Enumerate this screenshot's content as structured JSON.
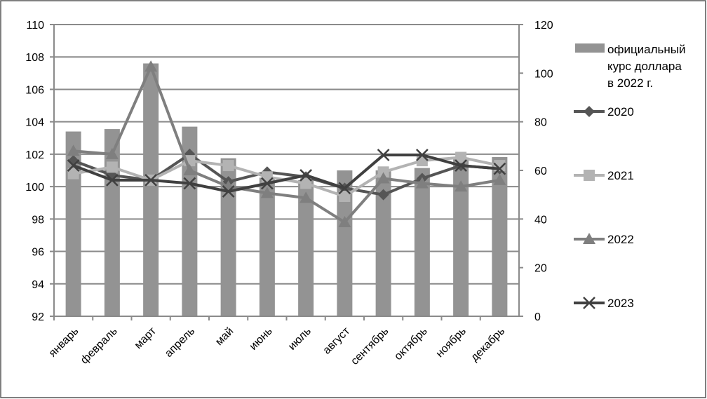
{
  "chart_data": {
    "type": "bar+line",
    "categories": [
      "январь",
      "февраль",
      "март",
      "апрель",
      "май",
      "июнь",
      "июль",
      "август",
      "сентябрь",
      "октябрь",
      "ноябрь",
      "декабрь"
    ],
    "left_axis": {
      "ylim": [
        92,
        110
      ],
      "ticks": [
        "92",
        "94",
        "96",
        "98",
        "100",
        "102",
        "104",
        "106",
        "108",
        "110"
      ]
    },
    "right_axis": {
      "ylim": [
        0,
        120
      ],
      "ticks": [
        "0",
        "20",
        "40",
        "60",
        "80",
        "100",
        "120"
      ]
    },
    "grid": true,
    "legend_position": "right",
    "bar_series": {
      "name_lines": [
        "официальный",
        "курс доллара",
        "в 2022 г."
      ],
      "axis": "right",
      "color": "#939393",
      "values": [
        76,
        77,
        104,
        78,
        65,
        57,
        56,
        60,
        60,
        61,
        65,
        65.5
      ]
    },
    "line_series": [
      {
        "name": "2020",
        "axis": "left",
        "marker": "diamond",
        "color": "#555555",
        "values": [
          101.6,
          100.7,
          100.4,
          102.0,
          100.3,
          100.9,
          100.6,
          99.9,
          99.5,
          100.5,
          101.3,
          101.1
        ]
      },
      {
        "name": "2021",
        "axis": "left",
        "marker": "square",
        "color": "#b3b3b3",
        "values": [
          100.8,
          101.2,
          100.4,
          101.6,
          101.3,
          100.6,
          100.2,
          99.4,
          100.9,
          101.6,
          101.8,
          101.3
        ]
      },
      {
        "name": "2022",
        "axis": "left",
        "marker": "triangle",
        "color": "#7f7f7f",
        "values": [
          102.2,
          102.0,
          107.4,
          101.0,
          100.0,
          99.6,
          99.3,
          97.8,
          100.5,
          100.2,
          100.0,
          100.4
        ]
      },
      {
        "name": "2023",
        "axis": "left",
        "marker": "x",
        "color": "#404040",
        "values": [
          101.3,
          100.4,
          100.4,
          100.2,
          99.7,
          100.2,
          100.7,
          99.9,
          101.95,
          101.95,
          101.3,
          101.1
        ]
      }
    ]
  }
}
